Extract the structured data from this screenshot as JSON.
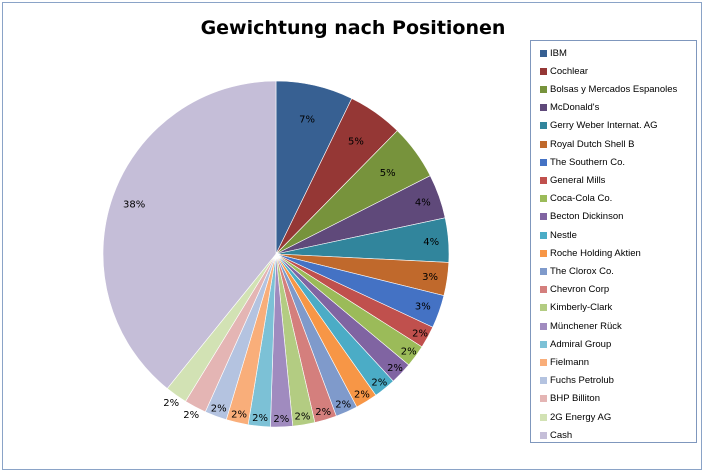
{
  "chart_data": {
    "type": "pie",
    "title": "Gewichtung nach Positionen",
    "legend_position": "right",
    "slices": [
      {
        "label": "IBM",
        "value": 7,
        "pct_label": "7%",
        "color": "#376092"
      },
      {
        "label": "Cochlear",
        "value": 5,
        "pct_label": "5%",
        "color": "#953735"
      },
      {
        "label": "Bolsas y Mercados Espanoles",
        "value": 5,
        "pct_label": "5%",
        "color": "#77933c"
      },
      {
        "label": "McDonald's",
        "value": 4,
        "pct_label": "4%",
        "color": "#5f497a"
      },
      {
        "label": "Gerry Weber Internat. AG",
        "value": 4,
        "pct_label": "4%",
        "color": "#31859c"
      },
      {
        "label": "Royal Dutch Shell B",
        "value": 3,
        "pct_label": "3%",
        "color": "#c0692c"
      },
      {
        "label": "The Southern Co.",
        "value": 3,
        "pct_label": "3%",
        "color": "#4472c4"
      },
      {
        "label": "General Mills",
        "value": 2,
        "pct_label": "2%",
        "color": "#c0504d"
      },
      {
        "label": "Coca-Cola Co.",
        "value": 2,
        "pct_label": "2%",
        "color": "#9bbb59"
      },
      {
        "label": "Becton Dickinson",
        "value": 2,
        "pct_label": "2%",
        "color": "#8064a2"
      },
      {
        "label": "Nestle",
        "value": 2,
        "pct_label": "2%",
        "color": "#4bacc6"
      },
      {
        "label": "Roche Holding Aktien",
        "value": 2,
        "pct_label": "2%",
        "color": "#f79646"
      },
      {
        "label": "The Clorox Co.",
        "value": 2,
        "pct_label": "2%",
        "color": "#7f9acb"
      },
      {
        "label": "Chevron Corp",
        "value": 2,
        "pct_label": "2%",
        "color": "#d47f7d"
      },
      {
        "label": "Kimberly-Clark",
        "value": 2,
        "pct_label": "2%",
        "color": "#b3cc82"
      },
      {
        "label": "Münchener Rück",
        "value": 2,
        "pct_label": "2%",
        "color": "#a08bbf"
      },
      {
        "label": "Admiral Group",
        "value": 2,
        "pct_label": "2%",
        "color": "#7cc1d6"
      },
      {
        "label": "Fielmann",
        "value": 2,
        "pct_label": "2%",
        "color": "#f9ae7a"
      },
      {
        "label": "Fuchs Petrolub",
        "value": 2,
        "pct_label": "2%",
        "color": "#b4c3e0"
      },
      {
        "label": "BHP Billiton",
        "value": 2,
        "pct_label": "2%",
        "color": "#e4b5b4"
      },
      {
        "label": "2G Energy AG",
        "value": 2,
        "pct_label": "2%",
        "color": "#d2e2b4"
      },
      {
        "label": "Cash",
        "value": 38,
        "pct_label": "38%",
        "color": "#c5bed8"
      }
    ]
  }
}
